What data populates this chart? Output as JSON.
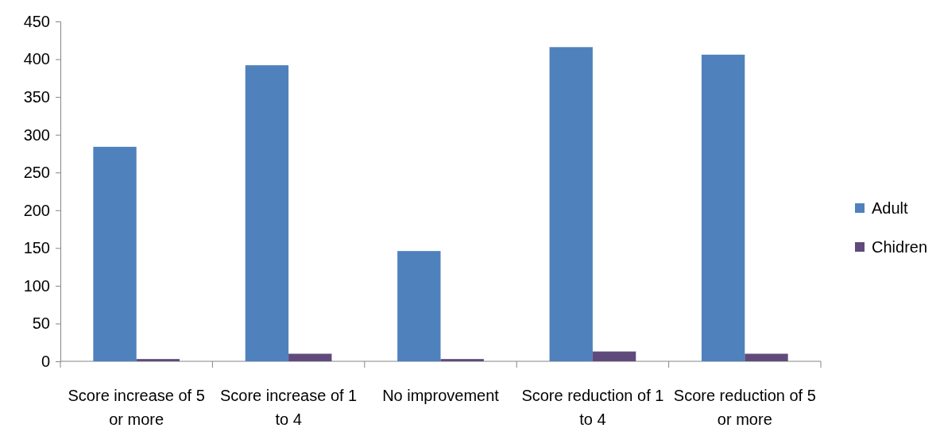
{
  "chart_data": {
    "type": "bar",
    "categories": [
      "Score increase of 5 or more",
      "Score increase of 1 to 4",
      "No improvement",
      "Score reduction of 1 to 4",
      "Score reduction of 5 or more"
    ],
    "series": [
      {
        "name": "Adult",
        "color": "#4f81bd",
        "values": [
          284,
          392,
          146,
          416,
          406
        ]
      },
      {
        "name": "Chidren",
        "color": "#604a7b",
        "values": [
          3,
          10,
          3,
          13,
          10
        ]
      }
    ],
    "ylim": [
      0,
      450
    ],
    "yticks": [
      0,
      50,
      100,
      150,
      200,
      250,
      300,
      350,
      400,
      450
    ],
    "legend": "right",
    "grid": false
  }
}
